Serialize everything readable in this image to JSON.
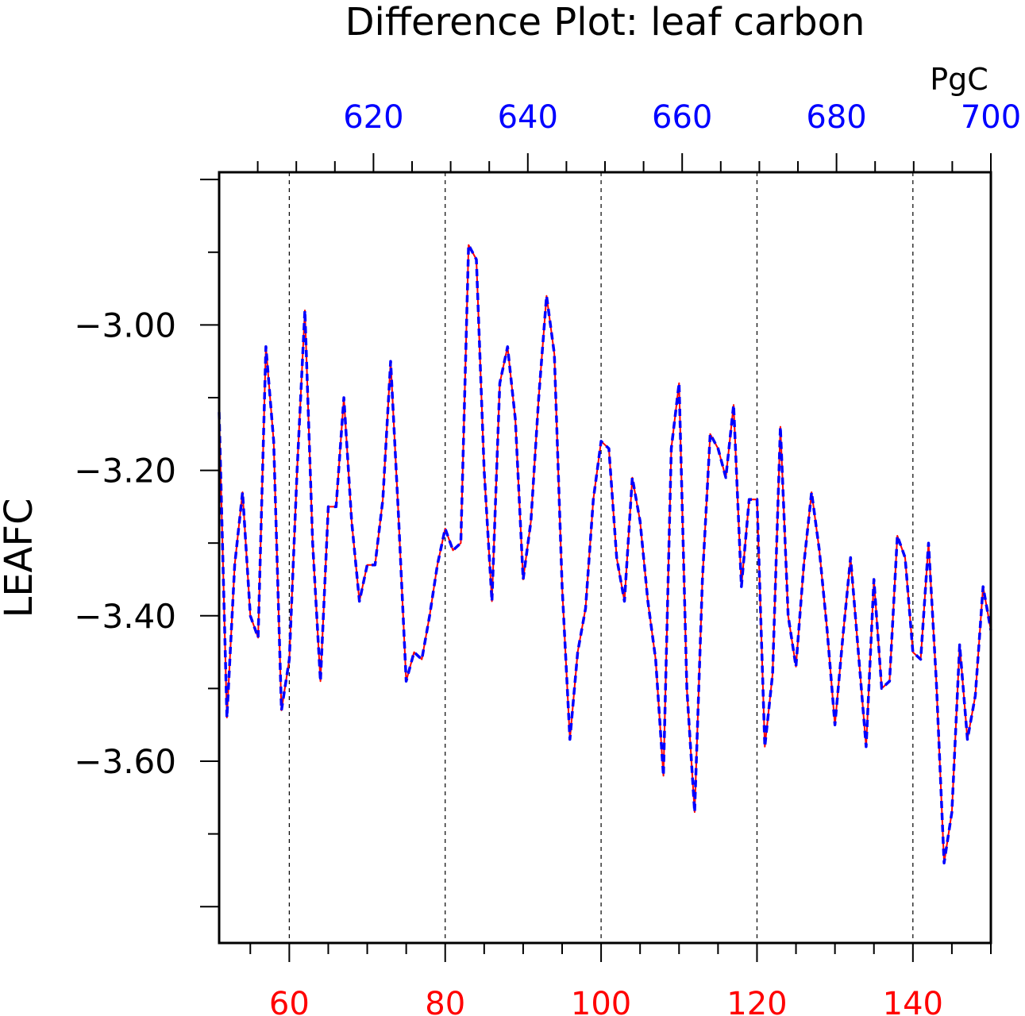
{
  "chart_data": {
    "type": "line",
    "title": "Difference Plot: leaf carbon",
    "ylabel": "LEAFC",
    "top_axis_unit": "PgC",
    "xlim_bottom": [
      51,
      150
    ],
    "xlim_top": [
      600,
      700
    ],
    "ylim": [
      -3.85,
      -2.79
    ],
    "bottom_ticks": [
      60,
      80,
      100,
      120,
      140
    ],
    "top_ticks": [
      620,
      640,
      660,
      680,
      700
    ],
    "y_ticks": [
      -3.0,
      -3.2,
      -3.4,
      -3.6
    ],
    "y_tick_labels": [
      "−3.00",
      "−3.20",
      "−3.40",
      "−3.60"
    ],
    "grid": "dashed vertical",
    "colors": {
      "bottom_axis": "#ff0000",
      "top_axis": "#0000ff",
      "series_a": "#ff0000",
      "series_b": "#0000ff"
    },
    "x": [
      51,
      52,
      53,
      54,
      55,
      56,
      57,
      58,
      59,
      60,
      61,
      62,
      63,
      64,
      65,
      66,
      67,
      68,
      69,
      70,
      71,
      72,
      73,
      74,
      75,
      76,
      77,
      78,
      79,
      80,
      81,
      82,
      83,
      84,
      85,
      86,
      87,
      88,
      89,
      90,
      91,
      92,
      93,
      94,
      95,
      96,
      97,
      98,
      99,
      100,
      101,
      102,
      103,
      104,
      105,
      106,
      107,
      108,
      109,
      110,
      111,
      112,
      113,
      114,
      115,
      116,
      117,
      118,
      119,
      120,
      121,
      122,
      123,
      124,
      125,
      126,
      127,
      128,
      129,
      130,
      131,
      132,
      133,
      134,
      135,
      136,
      137,
      138,
      139,
      140,
      141,
      142,
      143,
      144,
      145,
      146,
      147,
      148,
      149,
      150
    ],
    "series": [
      {
        "name": "",
        "values": [
          -3.12,
          -3.54,
          -3.33,
          -3.23,
          -3.4,
          -3.43,
          -3.03,
          -3.16,
          -3.53,
          -3.46,
          -3.2,
          -2.98,
          -3.3,
          -3.49,
          -3.25,
          -3.25,
          -3.1,
          -3.27,
          -3.38,
          -3.33,
          -3.33,
          -3.24,
          -3.05,
          -3.26,
          -3.49,
          -3.45,
          -3.46,
          -3.4,
          -3.33,
          -3.28,
          -3.31,
          -3.3,
          -2.89,
          -2.91,
          -3.2,
          -3.38,
          -3.08,
          -3.03,
          -3.13,
          -3.35,
          -3.27,
          -3.1,
          -2.96,
          -3.04,
          -3.36,
          -3.57,
          -3.45,
          -3.39,
          -3.24,
          -3.16,
          -3.17,
          -3.32,
          -3.38,
          -3.21,
          -3.27,
          -3.38,
          -3.46,
          -3.62,
          -3.17,
          -3.08,
          -3.5,
          -3.67,
          -3.35,
          -3.15,
          -3.17,
          -3.21,
          -3.11,
          -3.36,
          -3.24,
          -3.24,
          -3.58,
          -3.48,
          -3.14,
          -3.4,
          -3.47,
          -3.33,
          -3.23,
          -3.31,
          -3.42,
          -3.55,
          -3.43,
          -3.32,
          -3.45,
          -3.58,
          -3.35,
          -3.5,
          -3.49,
          -3.29,
          -3.32,
          -3.45,
          -3.46,
          -3.3,
          -3.49,
          -3.74,
          -3.67,
          -3.44,
          -3.57,
          -3.51,
          -3.36,
          -3.42
        ]
      },
      {
        "name": "",
        "values": [
          -3.12,
          -3.54,
          -3.33,
          -3.23,
          -3.4,
          -3.43,
          -3.03,
          -3.16,
          -3.53,
          -3.46,
          -3.2,
          -2.98,
          -3.3,
          -3.49,
          -3.25,
          -3.25,
          -3.1,
          -3.27,
          -3.38,
          -3.33,
          -3.33,
          -3.24,
          -3.05,
          -3.26,
          -3.49,
          -3.45,
          -3.46,
          -3.4,
          -3.33,
          -3.28,
          -3.31,
          -3.3,
          -2.89,
          -2.91,
          -3.2,
          -3.38,
          -3.08,
          -3.03,
          -3.13,
          -3.35,
          -3.27,
          -3.1,
          -2.96,
          -3.04,
          -3.36,
          -3.57,
          -3.45,
          -3.39,
          -3.24,
          -3.16,
          -3.17,
          -3.32,
          -3.38,
          -3.21,
          -3.27,
          -3.38,
          -3.46,
          -3.62,
          -3.17,
          -3.08,
          -3.5,
          -3.67,
          -3.35,
          -3.15,
          -3.17,
          -3.21,
          -3.11,
          -3.36,
          -3.24,
          -3.24,
          -3.58,
          -3.48,
          -3.14,
          -3.4,
          -3.47,
          -3.33,
          -3.23,
          -3.31,
          -3.42,
          -3.55,
          -3.43,
          -3.32,
          -3.45,
          -3.58,
          -3.35,
          -3.5,
          -3.49,
          -3.29,
          -3.32,
          -3.45,
          -3.46,
          -3.3,
          -3.49,
          -3.74,
          -3.67,
          -3.44,
          -3.57,
          -3.51,
          -3.36,
          -3.42
        ]
      }
    ]
  }
}
